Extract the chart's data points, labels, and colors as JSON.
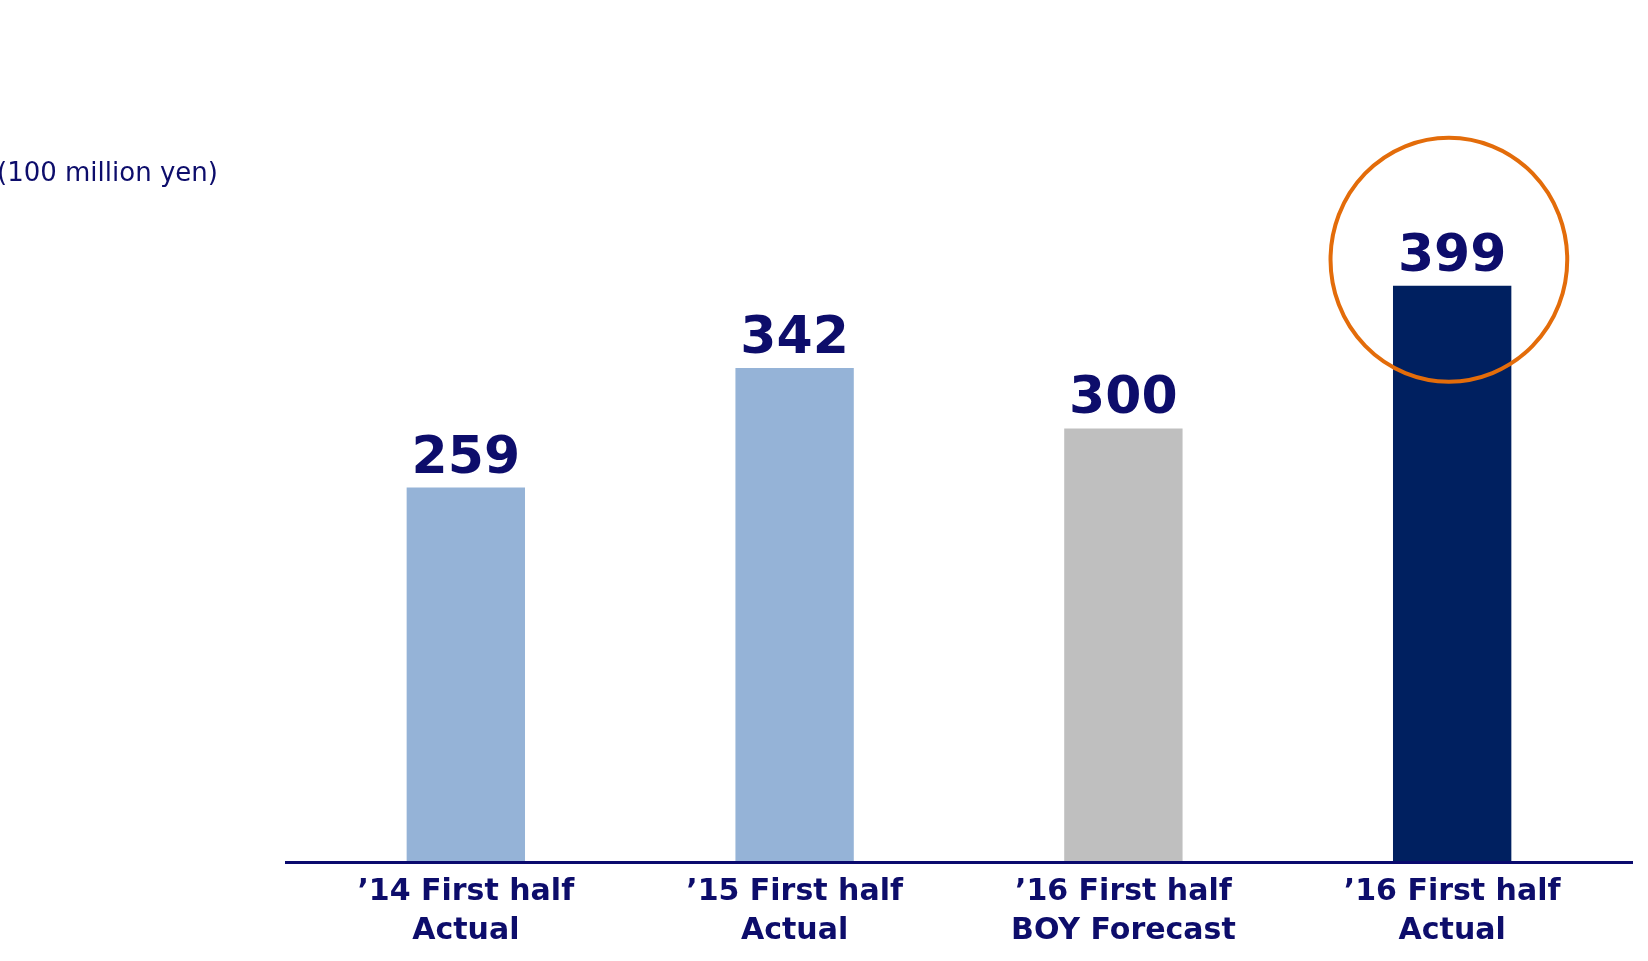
{
  "chart_data": {
    "type": "bar",
    "categories": [
      "’14 First half\nActual",
      "’15 First half\nActual",
      "’16 First half\nBOY Forecast",
      "’16 First half\nActual"
    ],
    "values": [
      259,
      342,
      300,
      399
    ],
    "colors": [
      "#95b3d7",
      "#95b3d7",
      "#bfbfbf",
      "#002060"
    ],
    "data_labels": true,
    "tick_labels": "x",
    "annotations": [
      "(100 million yen)"
    ]
  }
}
